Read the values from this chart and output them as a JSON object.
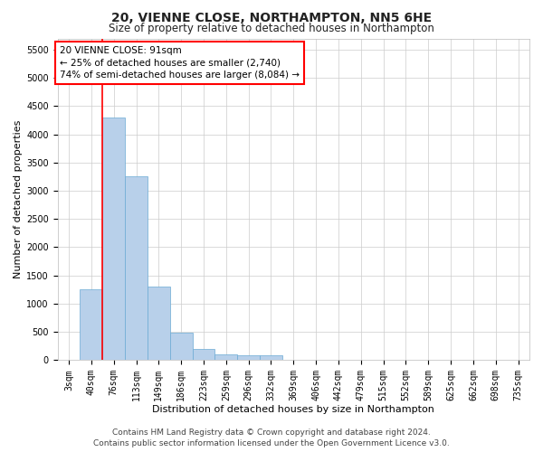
{
  "title_line1": "20, VIENNE CLOSE, NORTHAMPTON, NN5 6HE",
  "title_line2": "Size of property relative to detached houses in Northampton",
  "xlabel": "Distribution of detached houses by size in Northampton",
  "ylabel": "Number of detached properties",
  "footer_line1": "Contains HM Land Registry data © Crown copyright and database right 2024.",
  "footer_line2": "Contains public sector information licensed under the Open Government Licence v3.0.",
  "annotation_title": "20 VIENNE CLOSE: 91sqm",
  "annotation_line1": "← 25% of detached houses are smaller (2,740)",
  "annotation_line2": "74% of semi-detached houses are larger (8,084) →",
  "bar_color": "#b8d0ea",
  "bar_edge_color": "#6aaad4",
  "vline_color": "red",
  "categories": [
    "3sqm",
    "40sqm",
    "76sqm",
    "113sqm",
    "149sqm",
    "186sqm",
    "223sqm",
    "259sqm",
    "296sqm",
    "332sqm",
    "369sqm",
    "406sqm",
    "442sqm",
    "479sqm",
    "515sqm",
    "552sqm",
    "589sqm",
    "625sqm",
    "662sqm",
    "698sqm",
    "735sqm"
  ],
  "values": [
    0,
    1250,
    4300,
    3250,
    1300,
    480,
    200,
    100,
    80,
    80,
    0,
    0,
    0,
    0,
    0,
    0,
    0,
    0,
    0,
    0,
    0
  ],
  "ylim": [
    0,
    5700
  ],
  "yticks": [
    0,
    500,
    1000,
    1500,
    2000,
    2500,
    3000,
    3500,
    4000,
    4500,
    5000,
    5500
  ],
  "background_color": "#ffffff",
  "grid_color": "#cccccc",
  "title_fontsize": 10,
  "subtitle_fontsize": 8.5,
  "xlabel_fontsize": 8,
  "ylabel_fontsize": 8,
  "tick_fontsize": 7,
  "annotation_fontsize": 7.5,
  "footer_fontsize": 6.5
}
